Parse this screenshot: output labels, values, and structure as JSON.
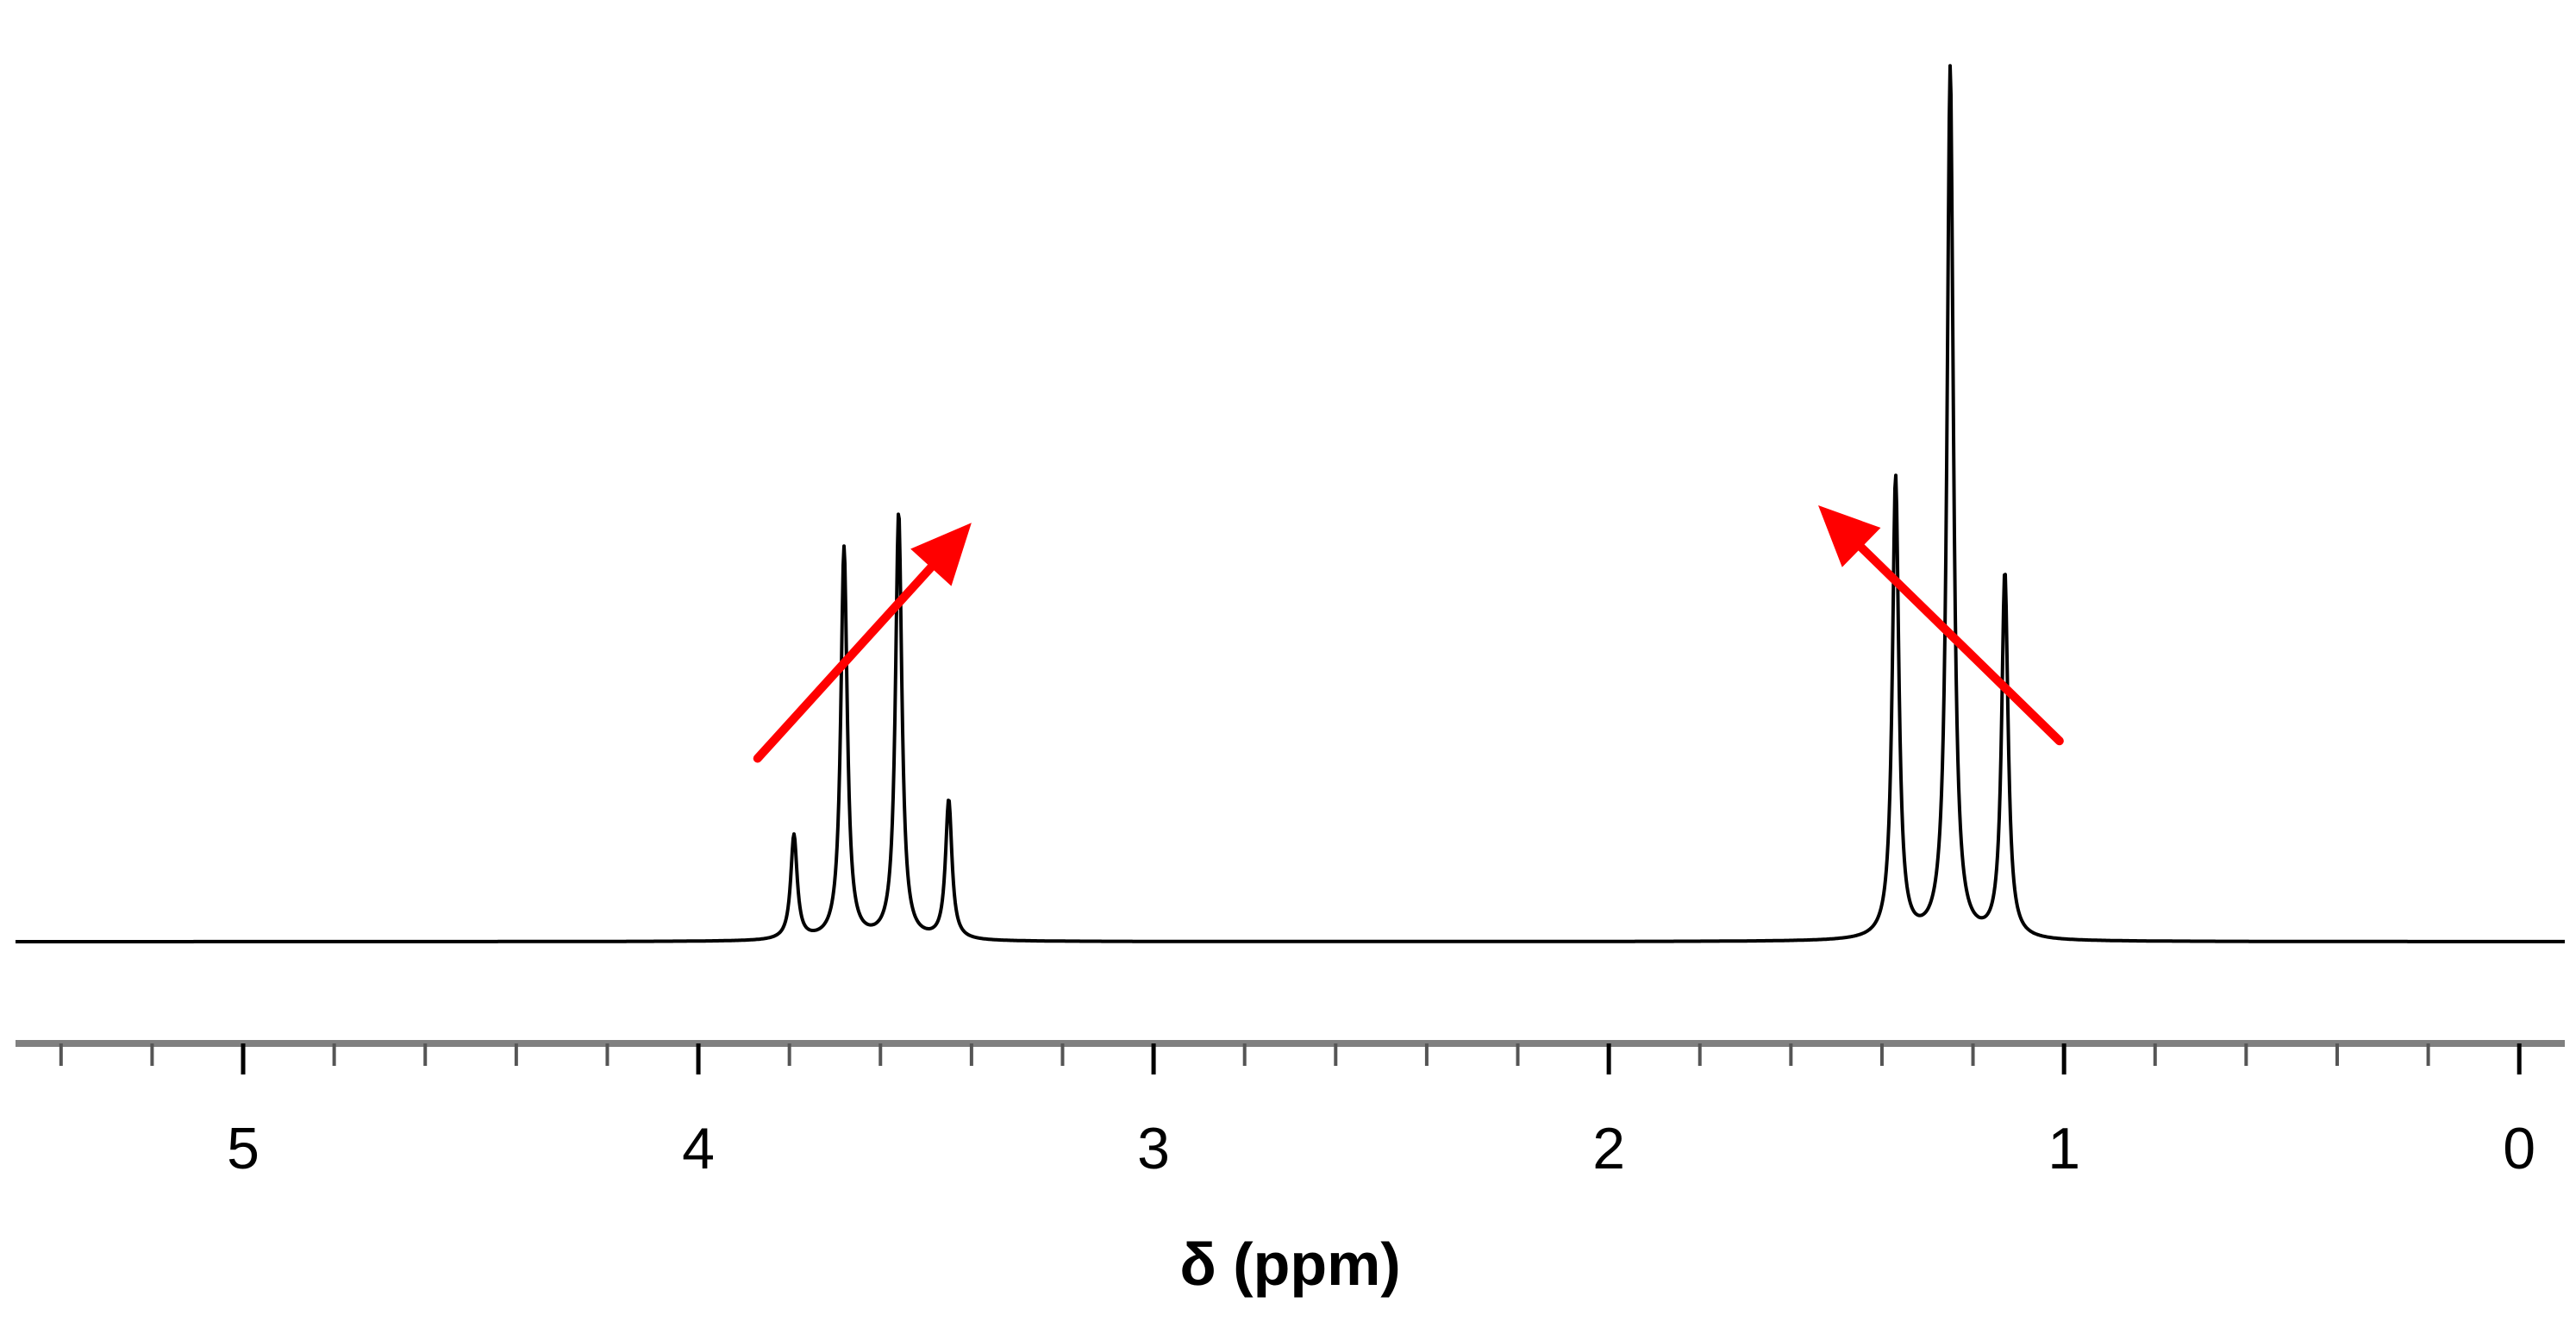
{
  "chart_data": {
    "type": "line",
    "xlabel": "δ (ppm)",
    "ylabel": "",
    "title": "",
    "x_reversed": true,
    "xlim": [
      5.5,
      -0.1
    ],
    "major_ticks": [
      5,
      4,
      3,
      2,
      1,
      0
    ],
    "tick_labels": [
      "5",
      "4",
      "3",
      "2",
      "1",
      "0"
    ],
    "minor_tick_step": 0.2,
    "grid": false,
    "series": [
      {
        "peaks": [
          {
            "ppm": 3.79,
            "intensity": 0.12
          },
          {
            "ppm": 3.68,
            "intensity": 0.45
          },
          {
            "ppm": 3.56,
            "intensity": 0.49
          },
          {
            "ppm": 3.45,
            "intensity": 0.16
          },
          {
            "ppm": 1.37,
            "intensity": 0.53
          },
          {
            "ppm": 1.25,
            "intensity": 1.0
          },
          {
            "ppm": 1.13,
            "intensity": 0.42
          }
        ]
      }
    ],
    "annotations": [
      {
        "type": "arrow",
        "color": "#ff0000",
        "from": {
          "ppm": 3.87,
          "intensity": 0.21
        },
        "to": {
          "ppm": 3.4,
          "intensity": 0.48
        }
      },
      {
        "type": "arrow",
        "color": "#ff0000",
        "from": {
          "ppm": 1.01,
          "intensity": 0.23
        },
        "to": {
          "ppm": 1.54,
          "intensity": 0.5
        }
      }
    ]
  }
}
